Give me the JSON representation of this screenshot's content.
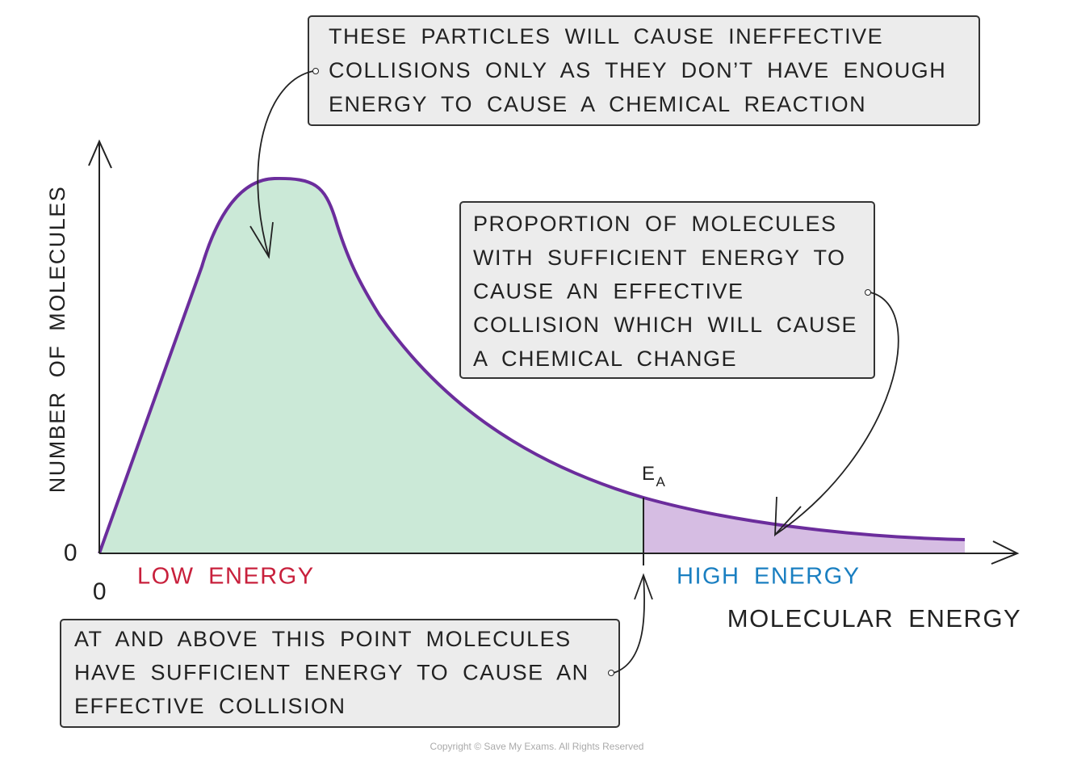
{
  "axes": {
    "y_label": "NUMBER OF MOLECULES",
    "x_label": "MOLECULAR ENERGY",
    "y_origin": "0",
    "x_origin": "0"
  },
  "regions": {
    "low": "LOW ENERGY",
    "high": "HIGH ENERGY"
  },
  "threshold": {
    "label": "E",
    "subscript": "A"
  },
  "callouts": [
    {
      "lines": [
        "THESE PARTICLES WILL CAUSE INEFFECTIVE",
        "COLLISIONS ONLY AS THEY DON’T HAVE ENOUGH",
        "ENERGY TO CAUSE A CHEMICAL REACTION"
      ]
    },
    {
      "lines": [
        "PROPORTION OF MOLECULES",
        "WITH SUFFICIENT ENERGY TO",
        "CAUSE AN EFFECTIVE",
        "COLLISION WHICH WILL CAUSE",
        "A CHEMICAL CHANGE"
      ]
    },
    {
      "lines": [
        "AT AND ABOVE THIS POINT MOLECULES",
        "HAVE SUFFICIENT ENERGY TO CAUSE AN",
        "EFFECTIVE COLLISION"
      ]
    }
  ],
  "copyright": "Copyright © Save My Exams. All Rights Reserved"
}
